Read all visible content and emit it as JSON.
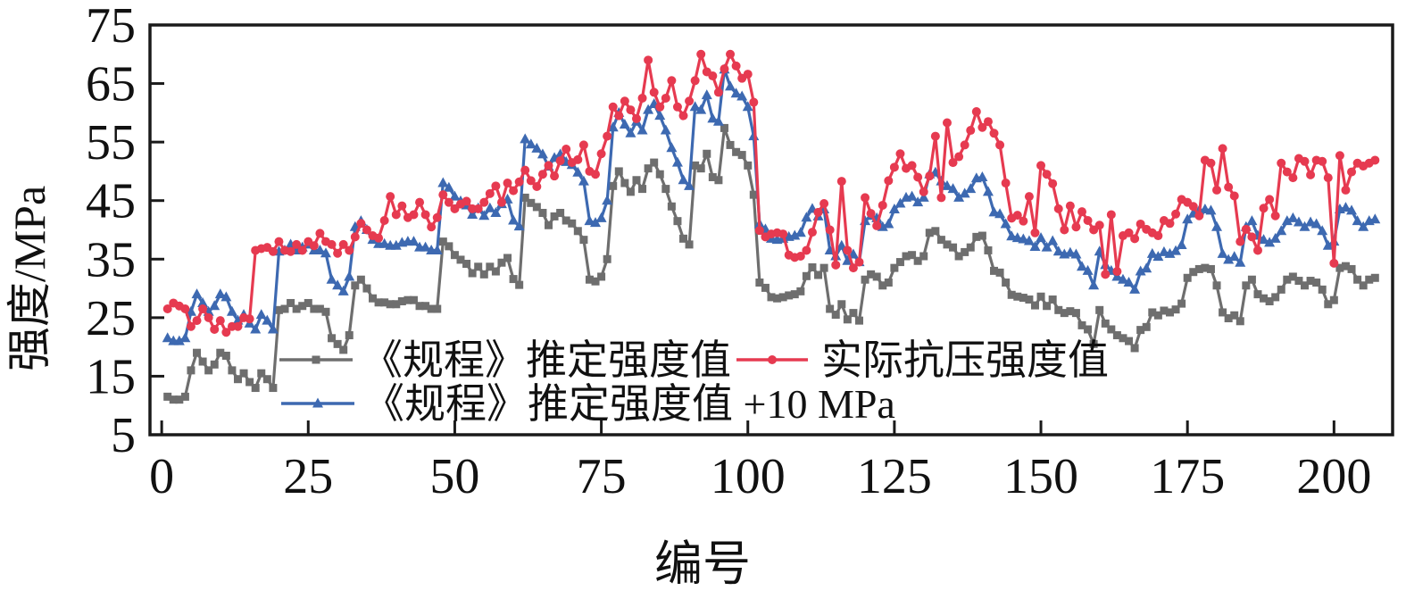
{
  "figure": {
    "background": "#ffffff",
    "frame_color": "#1a1a1a"
  },
  "chart_data": {
    "type": "line",
    "title": "",
    "xlabel": "编号",
    "ylabel": "强度/MPa",
    "xlim": [
      -2,
      210
    ],
    "ylim": [
      5,
      75
    ],
    "x_ticks": [
      0,
      25,
      50,
      75,
      100,
      125,
      150,
      175,
      200
    ],
    "y_ticks": [
      5,
      15,
      25,
      35,
      45,
      55,
      65,
      75
    ],
    "grid": false,
    "legend_position": "inside-bottom-left",
    "x_description": "specimen number; points sampled at consecutive integers 1..207",
    "series": [
      {
        "name": "《规程》推定强度值",
        "color": "#6e6e6e",
        "marker": "square",
        "x_start": 1,
        "values": [
          11.5,
          11,
          11,
          11.5,
          16,
          19,
          17.5,
          16,
          17,
          19,
          18.5,
          16,
          14.5,
          15.5,
          14,
          13,
          15.5,
          14.5,
          13,
          26.3,
          26.5,
          27.5,
          26.5,
          27,
          27.5,
          26.5,
          26.5,
          26,
          21.5,
          20.5,
          19.5,
          22,
          30.5,
          31.5,
          30,
          28.3,
          27.6,
          27.6,
          27.3,
          27.3,
          27.8,
          28,
          28,
          27,
          27,
          26.5,
          26.5,
          38,
          37.2,
          35.7,
          34.9,
          34.2,
          32.6,
          33.7,
          32.4,
          33.7,
          32.9,
          34.4,
          35.2,
          31.6,
          30.6,
          45.5,
          44.6,
          43.9,
          42.9,
          40.8,
          42.3,
          42.9,
          41.6,
          41.1,
          39.8,
          38.3,
          31.5,
          31.2,
          32,
          35,
          47.5,
          50,
          48,
          46.5,
          48.5,
          47,
          50.5,
          51.5,
          49.5,
          47,
          44,
          41.5,
          38.5,
          37.5,
          51,
          50.5,
          53,
          49,
          48.5,
          57.4,
          54.5,
          53.3,
          52.8,
          51,
          46,
          31,
          30.1,
          28.5,
          28.3,
          28.5,
          28.8,
          29,
          29.5,
          32.1,
          33.6,
          32.3,
          33.5,
          26.5,
          25.5,
          27.3,
          24.7,
          25.8,
          24.5,
          31.5,
          32.4,
          32,
          30.5,
          31,
          33.5,
          34.5,
          35.5,
          35.7,
          34.7,
          35.5,
          39.5,
          39.8,
          38.3,
          37.5,
          37,
          35.5,
          36.2,
          37,
          38.8,
          39,
          36.5,
          33,
          32.7,
          31,
          28.9,
          28.6,
          28.4,
          28.1,
          27.1,
          28.6,
          27,
          28.1,
          26.3,
          25.8,
          26.1,
          25.8,
          23.7,
          23,
          20.5,
          26.3,
          24,
          23,
          22,
          21.5,
          21,
          19.8,
          22.9,
          23.4,
          25.9,
          25.4,
          26.2,
          25.9,
          26.4,
          27.4,
          31.8,
          32.8,
          33.3,
          33.5,
          33.3,
          30.5,
          25.9,
          24.9,
          25.4,
          24.4,
          30.5,
          31.5,
          29,
          28.3,
          27.8,
          28.5,
          29.8,
          31.5,
          32,
          31.3,
          30.5,
          31.3,
          31,
          29.8,
          27.3,
          28,
          33.5,
          33.8,
          33.3,
          31.5,
          30.5,
          31.5,
          31.8
        ]
      },
      {
        "name": "《规程》推定强度值 +10 MPa",
        "color": "#3d69b1",
        "marker": "triangle",
        "x_start": 1,
        "note": "equals first series plus 10 MPa",
        "values": [
          21.5,
          21,
          21,
          21.5,
          26,
          29,
          27.5,
          26,
          27,
          29,
          28.5,
          26,
          24.5,
          25.5,
          24,
          23,
          25.5,
          24.5,
          23,
          36.3,
          36.5,
          37.5,
          36.5,
          37,
          37.5,
          36.5,
          36.5,
          36,
          31.5,
          30.5,
          29.5,
          32,
          40.5,
          41.5,
          40,
          38.3,
          37.6,
          37.6,
          37.3,
          37.3,
          37.8,
          38,
          38,
          37,
          37,
          36.5,
          36.5,
          48,
          47.2,
          45.7,
          44.9,
          44.2,
          42.6,
          43.7,
          42.4,
          43.7,
          42.9,
          44.4,
          45.2,
          41.6,
          40.6,
          55.5,
          54.6,
          53.9,
          52.9,
          50.8,
          52.3,
          52.9,
          51.6,
          51.1,
          49.8,
          48.3,
          41.5,
          41.2,
          42,
          45,
          57.5,
          60,
          58,
          56.5,
          58.5,
          57,
          60.5,
          61.5,
          59.5,
          57,
          54,
          51.5,
          48.5,
          47.5,
          61,
          60.5,
          63,
          59,
          58.5,
          67.4,
          64.5,
          63.3,
          62.8,
          61,
          56,
          41,
          40.1,
          38.5,
          38.3,
          38.5,
          38.8,
          39,
          39.5,
          42.1,
          43.6,
          42.3,
          43.5,
          36.5,
          35.5,
          37.3,
          34.7,
          35.8,
          34.5,
          41.5,
          42.4,
          42,
          40.5,
          41,
          43.5,
          44.5,
          45.5,
          45.7,
          44.7,
          45.5,
          49.5,
          49.8,
          48.3,
          47.5,
          47,
          45.5,
          46.2,
          47,
          48.8,
          49,
          46.5,
          43,
          42.7,
          41,
          38.9,
          38.6,
          38.4,
          38.1,
          37.1,
          38.6,
          37,
          38.1,
          36.3,
          35.8,
          36.1,
          35.8,
          33.7,
          33,
          30.5,
          36.3,
          34,
          33,
          32,
          31.5,
          31,
          29.8,
          32.9,
          33.4,
          35.9,
          35.4,
          36.2,
          35.9,
          36.4,
          37.4,
          41.8,
          42.8,
          43.3,
          43.5,
          43.3,
          40.5,
          35.9,
          34.9,
          35.4,
          34.4,
          40.5,
          41.5,
          39,
          38.3,
          37.8,
          38.5,
          39.8,
          41.5,
          42,
          41.3,
          40.5,
          41.3,
          41,
          39.8,
          37.3,
          38,
          43.5,
          43.8,
          43.3,
          41.5,
          40.5,
          41.5,
          41.8
        ]
      },
      {
        "name": "实际抗压强度值",
        "color": "#e63a50",
        "marker": "circle",
        "x_start": 1,
        "values": [
          26.5,
          27.5,
          27,
          26.5,
          23.5,
          24.5,
          26.5,
          25,
          23,
          24.5,
          22.5,
          23.5,
          23.5,
          25,
          24.8,
          36.5,
          36.8,
          37,
          36.3,
          38,
          36.5,
          36.3,
          37.5,
          36.5,
          38,
          37.3,
          39.4,
          38,
          37.5,
          36,
          37.5,
          36.5,
          38.8,
          41.1,
          40,
          39,
          38.6,
          41.6,
          45.7,
          42.6,
          44.1,
          42.1,
          42.6,
          44.7,
          42.6,
          40.5,
          42.1,
          46,
          44.7,
          43.6,
          44.4,
          44.9,
          43.6,
          43.6,
          44.7,
          46.2,
          47.5,
          44.7,
          48,
          46.7,
          48.2,
          50.2,
          48.4,
          47.4,
          49.5,
          51,
          49.2,
          51.8,
          53.8,
          51.5,
          52,
          54.5,
          50,
          49.5,
          53,
          56,
          61,
          59.5,
          62,
          60.5,
          59,
          62.5,
          69,
          63.5,
          61,
          62.5,
          65.5,
          61,
          59.5,
          62,
          65.5,
          70,
          67,
          66.3,
          63.5,
          67.5,
          70,
          68,
          65.9,
          66.6,
          61.8,
          39.9,
          38.8,
          39.3,
          39.5,
          39.3,
          35.7,
          35.3,
          35.5,
          36.5,
          39.6,
          43,
          44.5,
          40,
          34,
          48.3,
          36.5,
          33.5,
          34.5,
          45.5,
          42.8,
          40.7,
          44.2,
          48.4,
          50.7,
          53,
          50.5,
          51,
          49,
          46.5,
          49.2,
          56,
          45.5,
          58.3,
          51.5,
          52.5,
          54.5,
          57,
          60.2,
          57.5,
          58.5,
          56.5,
          54.5,
          48,
          42,
          42.5,
          41.5,
          45.7,
          39.5,
          51,
          49.5,
          47.9,
          43.6,
          40,
          44.1,
          40.5,
          43.1,
          41.6,
          40,
          40.8,
          32.4,
          42.6,
          32.9,
          39,
          39.5,
          38.5,
          41,
          40.1,
          39.5,
          39,
          41.6,
          41.1,
          42.7,
          45.2,
          44.7,
          44,
          42.4,
          51.9,
          51.4,
          46.8,
          53.9,
          47.3,
          45.8,
          38,
          40.1,
          38.8,
          36.5,
          43.7,
          45.2,
          42.4,
          51.4,
          49.9,
          48.9,
          52.2,
          51.7,
          49.4,
          51.9,
          51.7,
          48.9,
          34.3,
          52.7,
          46.8,
          49.9,
          51.4,
          50.9,
          51.4,
          51.9
        ]
      }
    ],
    "legend": {
      "rows": [
        [
          {
            "series": 0
          },
          {
            "series": 2
          }
        ],
        [
          {
            "series": 1
          }
        ]
      ]
    }
  }
}
